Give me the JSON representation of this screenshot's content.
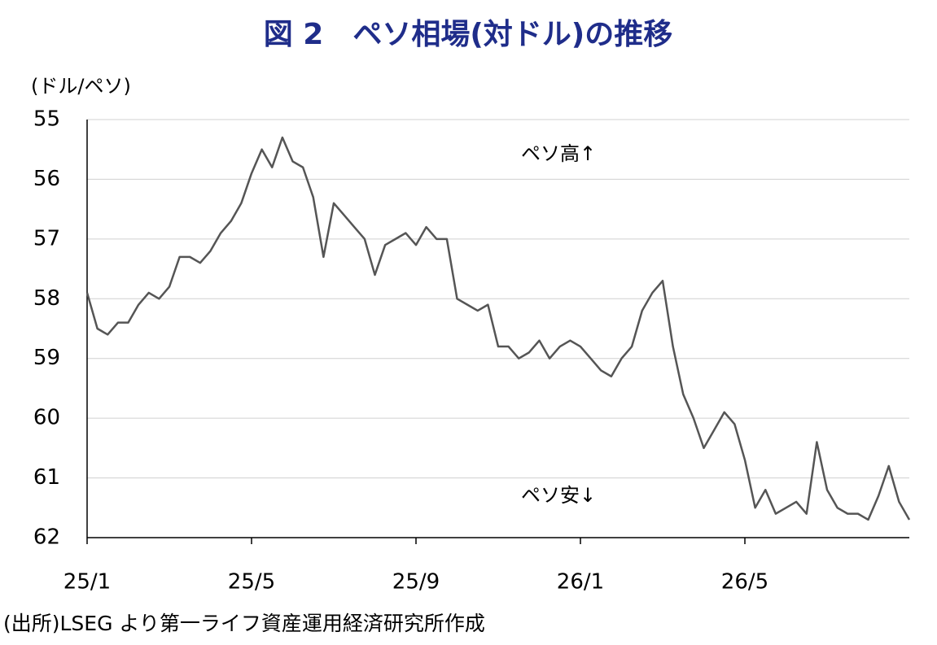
{
  "chart_data": {
    "type": "line",
    "title": "図 2　ペソ相場(対ドル)の推移",
    "y_unit": "(ドル/ペソ)",
    "source": "(出所)LSEG より第一ライフ資産運用経済研究所作成",
    "annotations": [
      "ペソ高↑",
      "ペソ安↓"
    ],
    "categories": [
      "25/1",
      null,
      null,
      null,
      null,
      null,
      null,
      null,
      null,
      null,
      null,
      null,
      null,
      null,
      null,
      null,
      "25/5",
      null,
      null,
      null,
      null,
      null,
      null,
      null,
      null,
      null,
      null,
      null,
      null,
      null,
      null,
      null,
      "25/9",
      null,
      null,
      null,
      null,
      null,
      null,
      null,
      null,
      null,
      null,
      null,
      null,
      null,
      null,
      null,
      "26/1",
      null,
      null,
      null,
      null,
      null,
      null,
      null,
      null,
      null,
      null,
      null,
      null,
      null,
      null,
      null,
      "26/5",
      null,
      null,
      null,
      null,
      null,
      null,
      null,
      null,
      null,
      null,
      null,
      null,
      null,
      null,
      null,
      null
    ],
    "series": [
      {
        "name": "ペソ相場",
        "color": "#555555",
        "values": [
          57.9,
          58.5,
          58.6,
          58.4,
          58.4,
          58.1,
          57.9,
          58.0,
          57.8,
          57.3,
          57.3,
          57.4,
          57.2,
          56.9,
          56.7,
          56.4,
          55.9,
          55.5,
          55.8,
          55.3,
          55.7,
          55.8,
          56.3,
          57.3,
          56.4,
          56.6,
          56.8,
          57.0,
          57.6,
          57.1,
          57.0,
          56.9,
          57.1,
          56.8,
          57.0,
          57.0,
          58.0,
          58.1,
          58.2,
          58.1,
          58.8,
          58.8,
          59.0,
          58.9,
          58.7,
          59.0,
          58.8,
          58.7,
          58.8,
          59.0,
          59.2,
          59.3,
          59.0,
          58.8,
          58.2,
          57.9,
          57.7,
          58.8,
          59.6,
          60.0,
          60.5,
          60.2,
          59.9,
          60.1,
          60.7,
          61.5,
          61.2,
          61.6,
          61.5,
          61.4,
          61.6,
          60.4,
          61.2,
          61.5,
          61.6,
          61.6,
          61.7,
          61.3,
          60.8,
          61.4,
          61.7
        ]
      }
    ],
    "ylim": [
      55,
      62
    ],
    "yticks": [
      55,
      56,
      57,
      58,
      59,
      60,
      61,
      62
    ],
    "y_inverted": true,
    "grid": true
  }
}
